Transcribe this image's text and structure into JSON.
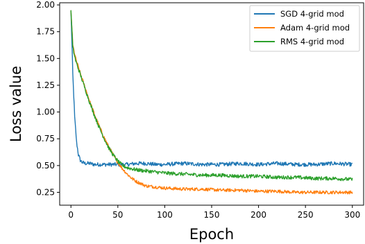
{
  "chart_data": {
    "type": "line",
    "title": "",
    "xlabel": "Epoch",
    "ylabel": "Loss value",
    "xlim": [
      -12,
      312
    ],
    "ylim": [
      0.13,
      2.02
    ],
    "xticks": [
      0,
      50,
      100,
      150,
      200,
      250,
      300
    ],
    "xtick_labels": [
      "0",
      "50",
      "100",
      "150",
      "200",
      "250",
      "300"
    ],
    "yticks": [
      0.25,
      0.5,
      0.75,
      1.0,
      1.25,
      1.5,
      1.75,
      2.0
    ],
    "ytick_labels": [
      "0.25",
      "0.50",
      "0.75",
      "1.00",
      "1.25",
      "1.50",
      "1.75",
      "2.00"
    ],
    "grid": false,
    "legend_position": "top-right",
    "series": [
      {
        "name": "SGD 4-grid mod",
        "color": "#1f77b4",
        "x": [
          0,
          2,
          4,
          6,
          8,
          10,
          12,
          15,
          20,
          25,
          30,
          40,
          50,
          60,
          70,
          80,
          90,
          100,
          120,
          140,
          160,
          180,
          200,
          220,
          240,
          260,
          280,
          300
        ],
        "y": [
          1.95,
          1.35,
          0.95,
          0.72,
          0.6,
          0.55,
          0.53,
          0.52,
          0.52,
          0.51,
          0.51,
          0.51,
          0.51,
          0.51,
          0.52,
          0.52,
          0.51,
          0.51,
          0.52,
          0.51,
          0.51,
          0.52,
          0.51,
          0.52,
          0.51,
          0.51,
          0.52,
          0.51
        ],
        "noise": 0.018
      },
      {
        "name": "Adam 4-grid mod",
        "color": "#ff7f0e",
        "x": [
          0,
          2,
          5,
          10,
          15,
          20,
          25,
          30,
          35,
          40,
          45,
          50,
          55,
          60,
          65,
          70,
          75,
          80,
          90,
          100,
          120,
          140,
          160,
          180,
          200,
          220,
          240,
          260,
          280,
          300
        ],
        "y": [
          1.95,
          1.62,
          1.5,
          1.36,
          1.23,
          1.1,
          0.98,
          0.87,
          0.77,
          0.68,
          0.6,
          0.53,
          0.47,
          0.42,
          0.38,
          0.35,
          0.33,
          0.31,
          0.3,
          0.29,
          0.28,
          0.28,
          0.27,
          0.27,
          0.26,
          0.26,
          0.25,
          0.25,
          0.25,
          0.25
        ],
        "noise": 0.015
      },
      {
        "name": "RMS 4-grid mod",
        "color": "#2ca02c",
        "x": [
          0,
          2,
          5,
          10,
          15,
          20,
          25,
          30,
          35,
          40,
          45,
          50,
          55,
          60,
          65,
          70,
          80,
          90,
          100,
          120,
          140,
          160,
          180,
          200,
          220,
          240,
          260,
          280,
          300
        ],
        "y": [
          1.95,
          1.6,
          1.48,
          1.35,
          1.22,
          1.09,
          0.97,
          0.86,
          0.76,
          0.67,
          0.6,
          0.54,
          0.5,
          0.48,
          0.47,
          0.46,
          0.45,
          0.44,
          0.43,
          0.42,
          0.41,
          0.41,
          0.4,
          0.4,
          0.39,
          0.39,
          0.38,
          0.38,
          0.37
        ],
        "noise": 0.017
      }
    ]
  }
}
